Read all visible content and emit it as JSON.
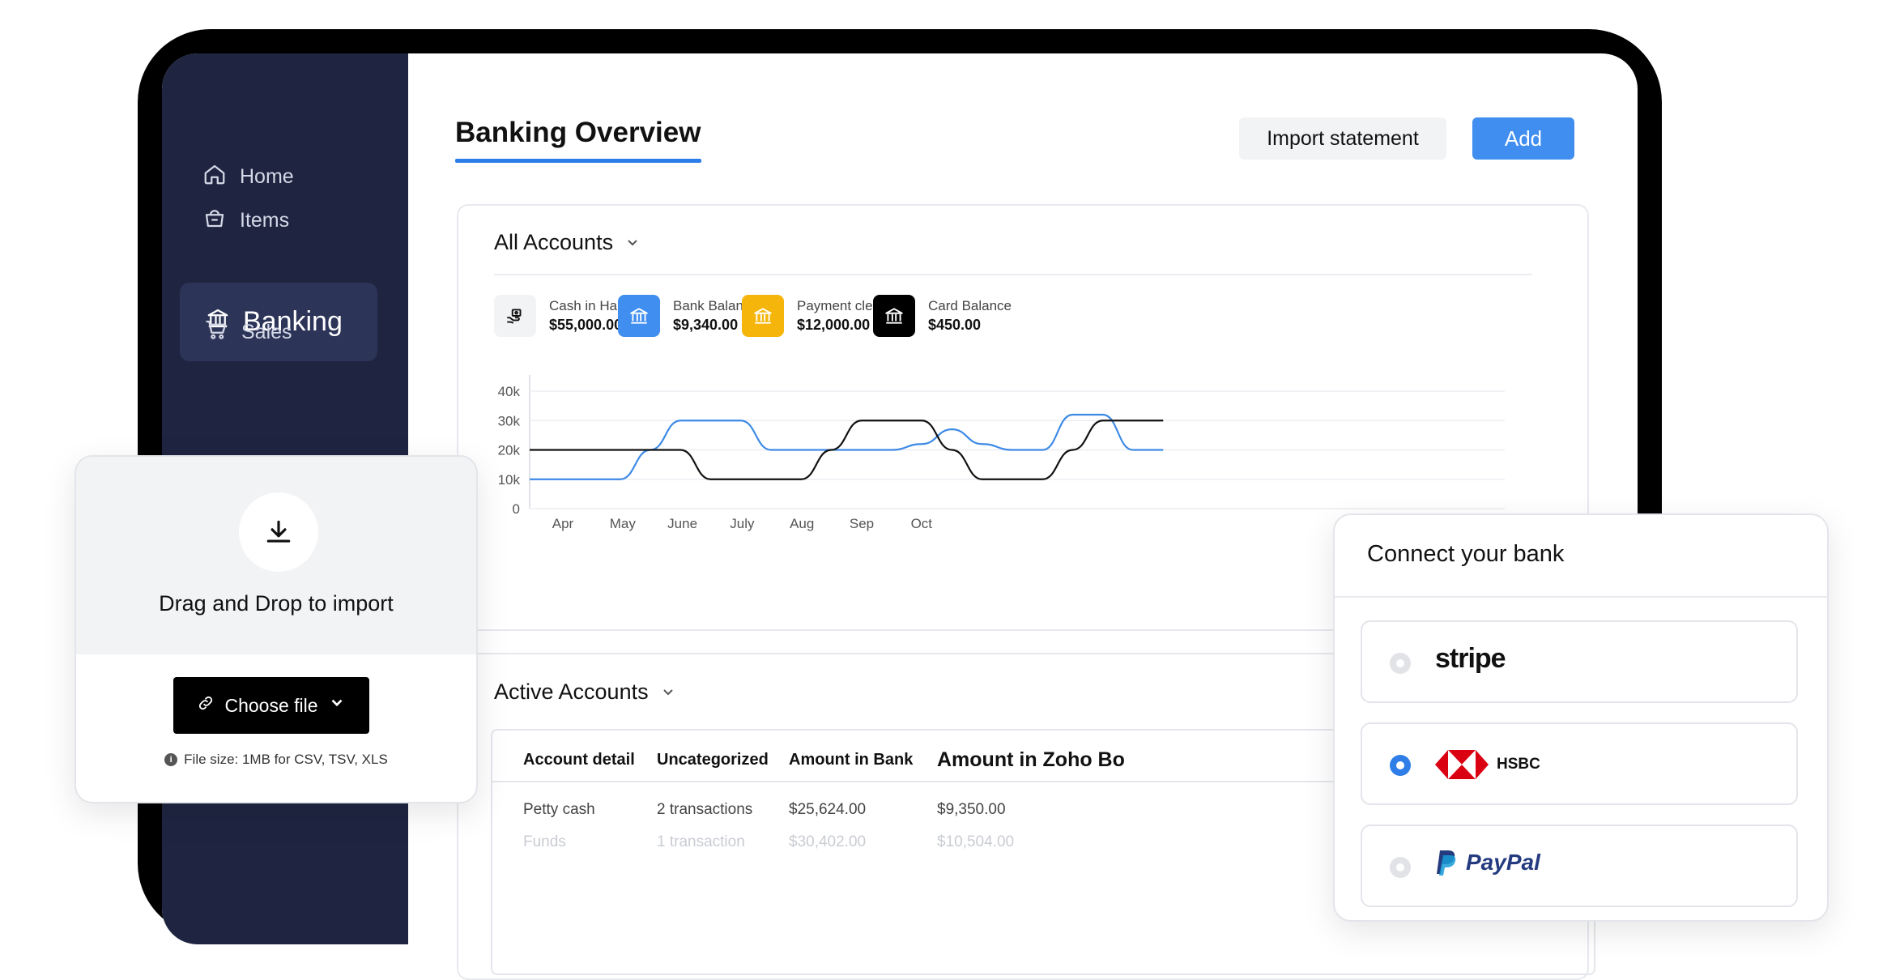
{
  "sidebar": {
    "items": [
      {
        "label": "Home",
        "icon": "home-icon"
      },
      {
        "label": "Items",
        "icon": "basket-icon"
      },
      {
        "label": "Banking",
        "icon": "bank-icon",
        "active": true
      },
      {
        "label": "Sales",
        "icon": "cart-icon"
      }
    ]
  },
  "header": {
    "title": "Banking Overview",
    "import_label": "Import statement",
    "add_label": "Add"
  },
  "overview": {
    "title": "All Accounts",
    "stats": [
      {
        "label": "Cash in Hand",
        "value": "$55,000.00",
        "icon": "hand-cash-icon",
        "color": "#f2f3f5"
      },
      {
        "label": "Bank Balance",
        "value": "$9,340.00",
        "icon": "bank-icon",
        "color": "#3f8ef0"
      },
      {
        "label": "Payment clearing",
        "value": "$12,000.00",
        "icon": "bank-icon",
        "color": "#f5b50a"
      },
      {
        "label": "Card Balance",
        "value": "$450.00",
        "icon": "bank-icon",
        "color": "#000000"
      }
    ]
  },
  "chart_data": {
    "type": "line",
    "categories": [
      "Apr",
      "May",
      "June",
      "July",
      "Aug",
      "Sep",
      "Oct"
    ],
    "y_ticks": [
      "0",
      "10k",
      "20k",
      "30k",
      "40k"
    ],
    "ylim": [
      0,
      40000
    ],
    "series": [
      {
        "color": "#3d8ae6",
        "x": [
          0,
          0.5,
          1,
          1.5,
          2,
          2.5,
          3,
          3.5,
          4,
          4.5,
          5,
          5.5,
          6,
          6.5,
          7,
          7.5,
          8,
          8.5,
          9,
          9.5,
          10,
          10.5
        ],
        "values": [
          10000,
          10000,
          10000,
          10000,
          20000,
          30000,
          30000,
          30000,
          20000,
          20000,
          20000,
          20000,
          20000,
          22000,
          27000,
          22000,
          20000,
          20000,
          32000,
          32000,
          20000,
          20000
        ]
      },
      {
        "color": "#111111",
        "x": [
          0,
          0.5,
          1,
          1.5,
          2,
          2.5,
          3,
          3.5,
          4,
          4.5,
          5,
          5.5,
          6,
          6.5,
          7,
          7.5,
          8,
          8.5,
          9,
          9.5,
          10,
          10.5
        ],
        "values": [
          20000,
          20000,
          20000,
          20000,
          20000,
          20000,
          10000,
          10000,
          10000,
          10000,
          20000,
          30000,
          30000,
          30000,
          20000,
          10000,
          10000,
          10000,
          20000,
          30000,
          30000,
          30000
        ]
      }
    ],
    "grid": true,
    "legend": "none"
  },
  "accounts": {
    "title": "Active Accounts",
    "columns": [
      "Account detail",
      "Uncategorized",
      "Amount in Bank",
      "Amount in Zoho Bo"
    ],
    "rows": [
      [
        "Petty cash",
        "2 transactions",
        "$25,624.00",
        "$9,350.00"
      ],
      [
        "Funds",
        "1 transaction",
        "$30,402.00",
        "$10,504.00"
      ]
    ]
  },
  "import_card": {
    "title": "Drag and Drop to import",
    "button_label": "Choose file",
    "note": "File size: 1MB for CSV, TSV, XLS"
  },
  "bank_card": {
    "title": "Connect your bank",
    "options": [
      {
        "name": "stripe",
        "selected": false
      },
      {
        "name": "HSBC",
        "selected": true
      },
      {
        "name": "PayPal",
        "selected": false
      }
    ]
  }
}
